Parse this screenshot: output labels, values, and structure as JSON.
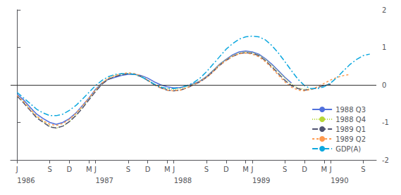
{
  "chart_data": {
    "type": "line",
    "xlim": [
      -1,
      55
    ],
    "xticks": [
      {
        "value": 0,
        "label": "J"
      },
      {
        "value": 5,
        "label": "S"
      },
      {
        "value": 8,
        "label": "D"
      },
      {
        "value": 11,
        "label": "M"
      },
      {
        "value": 12,
        "label": "J"
      },
      {
        "value": 17,
        "label": "S"
      },
      {
        "value": 20,
        "label": "D"
      },
      {
        "value": 23,
        "label": "M"
      },
      {
        "value": 24,
        "label": "J"
      },
      {
        "value": 29,
        "label": "S"
      },
      {
        "value": 32,
        "label": "D"
      },
      {
        "value": 35,
        "label": "M"
      },
      {
        "value": 36,
        "label": "J"
      },
      {
        "value": 41,
        "label": "S"
      },
      {
        "value": 44,
        "label": "D"
      },
      {
        "value": 47,
        "label": "M"
      },
      {
        "value": 48,
        "label": "J"
      },
      {
        "value": 53,
        "label": "S"
      }
    ],
    "ylim": [
      -2,
      2
    ],
    "yticks": [
      -2,
      -1,
      0,
      1,
      2
    ],
    "grid": false,
    "legend": "lower right",
    "reference_lines": [
      {
        "y": 0
      }
    ],
    "annotations": [
      {
        "x": 0,
        "text": "1986"
      },
      {
        "x": 12,
        "text": "1987"
      },
      {
        "x": 24,
        "text": "1988"
      },
      {
        "x": 36,
        "text": "1989"
      },
      {
        "x": 48,
        "text": "1990"
      }
    ],
    "series": [
      {
        "name": "1988 Q3",
        "line_style": "solid",
        "x": [
          0,
          1,
          2,
          3,
          4,
          5,
          6,
          7,
          8,
          9,
          10,
          11,
          12,
          13,
          14,
          15,
          16,
          17,
          18,
          19,
          20,
          21,
          22,
          23,
          24,
          25,
          26,
          27,
          28,
          29,
          30,
          31,
          32,
          33,
          34,
          35,
          36,
          37,
          38,
          39,
          40,
          41,
          42
        ],
        "values": [
          -0.25,
          -0.4,
          -0.6,
          -0.78,
          -0.9,
          -1.0,
          -1.05,
          -1.0,
          -0.9,
          -0.75,
          -0.55,
          -0.35,
          -0.12,
          0.05,
          0.15,
          0.2,
          0.25,
          0.28,
          0.28,
          0.25,
          0.18,
          0.08,
          0.0,
          -0.05,
          -0.08,
          -0.07,
          -0.03,
          0.03,
          0.1,
          0.22,
          0.38,
          0.55,
          0.68,
          0.8,
          0.88,
          0.9,
          0.88,
          0.82,
          0.7,
          0.55,
          0.38,
          0.2,
          0.05
        ]
      },
      {
        "name": "1988 Q4",
        "line_style": "dotted",
        "x": [
          0,
          1,
          2,
          3,
          4,
          5,
          6,
          7,
          8,
          9,
          10,
          11,
          12,
          13,
          14,
          15,
          16,
          17,
          18,
          19,
          20,
          21,
          22,
          23,
          24,
          25,
          26,
          27,
          28,
          29,
          30,
          31,
          32,
          33,
          34,
          35,
          36,
          37,
          38,
          39,
          40,
          41,
          42,
          43,
          44,
          45
        ],
        "values": [
          -0.28,
          -0.45,
          -0.65,
          -0.85,
          -0.98,
          -1.1,
          -1.15,
          -1.1,
          -0.98,
          -0.8,
          -0.6,
          -0.38,
          -0.15,
          0.05,
          0.18,
          0.25,
          0.28,
          0.3,
          0.28,
          0.22,
          0.12,
          0.02,
          -0.06,
          -0.1,
          -0.12,
          -0.1,
          -0.05,
          0.02,
          0.1,
          0.22,
          0.38,
          0.55,
          0.68,
          0.78,
          0.85,
          0.88,
          0.86,
          0.8,
          0.68,
          0.52,
          0.35,
          0.18,
          0.02,
          -0.08,
          -0.12,
          -0.1
        ]
      },
      {
        "name": "1989 Q1",
        "line_style": "dashed",
        "x": [
          0,
          1,
          2,
          3,
          4,
          5,
          6,
          7,
          8,
          9,
          10,
          11,
          12,
          13,
          14,
          15,
          16,
          17,
          18,
          19,
          20,
          21,
          22,
          23,
          24,
          25,
          26,
          27,
          28,
          29,
          30,
          31,
          32,
          33,
          34,
          35,
          36,
          37,
          38,
          39,
          40,
          41,
          42,
          43,
          44,
          45,
          46,
          47,
          48
        ],
        "values": [
          -0.3,
          -0.48,
          -0.68,
          -0.88,
          -1.0,
          -1.12,
          -1.15,
          -1.1,
          -0.98,
          -0.82,
          -0.62,
          -0.4,
          -0.18,
          0.02,
          0.15,
          0.22,
          0.27,
          0.3,
          0.28,
          0.22,
          0.12,
          0.0,
          -0.08,
          -0.14,
          -0.16,
          -0.14,
          -0.08,
          0.0,
          0.08,
          0.2,
          0.35,
          0.52,
          0.65,
          0.76,
          0.83,
          0.86,
          0.84,
          0.78,
          0.65,
          0.48,
          0.3,
          0.12,
          -0.02,
          -0.1,
          -0.14,
          -0.12,
          -0.07,
          -0.02,
          0.02
        ]
      },
      {
        "name": "1989 Q2",
        "line_style": "short_dashed",
        "x": [
          0,
          1,
          2,
          3,
          4,
          5,
          6,
          7,
          8,
          9,
          10,
          11,
          12,
          13,
          14,
          15,
          16,
          17,
          18,
          19,
          20,
          21,
          22,
          23,
          24,
          25,
          26,
          27,
          28,
          29,
          30,
          31,
          32,
          33,
          34,
          35,
          36,
          37,
          38,
          39,
          40,
          41,
          42,
          43,
          44,
          45,
          46,
          47,
          48,
          49,
          50,
          51
        ],
        "values": [
          -0.28,
          -0.45,
          -0.65,
          -0.83,
          -0.96,
          -1.05,
          -1.08,
          -1.03,
          -0.92,
          -0.76,
          -0.56,
          -0.35,
          -0.13,
          0.05,
          0.18,
          0.25,
          0.3,
          0.32,
          0.3,
          0.24,
          0.13,
          0.01,
          -0.08,
          -0.14,
          -0.16,
          -0.14,
          -0.08,
          0.0,
          0.09,
          0.2,
          0.35,
          0.52,
          0.65,
          0.76,
          0.83,
          0.85,
          0.82,
          0.75,
          0.62,
          0.45,
          0.26,
          0.08,
          -0.06,
          -0.14,
          -0.16,
          -0.12,
          -0.05,
          0.04,
          0.13,
          0.2,
          0.25,
          0.28
        ]
      },
      {
        "name": "GDP(A)",
        "line_style": "dash_dot",
        "x": [
          0,
          1,
          2,
          3,
          4,
          5,
          6,
          7,
          8,
          9,
          10,
          11,
          12,
          13,
          14,
          15,
          16,
          17,
          18,
          19,
          20,
          21,
          22,
          23,
          24,
          25,
          26,
          27,
          28,
          29,
          30,
          31,
          32,
          33,
          34,
          35,
          36,
          37,
          38,
          39,
          40,
          41,
          42,
          43,
          44,
          45,
          46,
          47,
          48,
          49,
          50,
          51,
          52,
          53,
          54
        ],
        "values": [
          -0.2,
          -0.35,
          -0.5,
          -0.65,
          -0.75,
          -0.82,
          -0.82,
          -0.78,
          -0.68,
          -0.55,
          -0.38,
          -0.2,
          -0.02,
          0.12,
          0.22,
          0.28,
          0.3,
          0.3,
          0.28,
          0.22,
          0.12,
          0.02,
          -0.06,
          -0.1,
          -0.1,
          -0.07,
          -0.02,
          0.06,
          0.18,
          0.35,
          0.55,
          0.75,
          0.95,
          1.1,
          1.22,
          1.28,
          1.3,
          1.28,
          1.2,
          1.05,
          0.85,
          0.62,
          0.38,
          0.15,
          -0.02,
          -0.1,
          -0.1,
          -0.05,
          0.05,
          0.2,
          0.38,
          0.55,
          0.68,
          0.78,
          0.82
        ]
      }
    ]
  }
}
